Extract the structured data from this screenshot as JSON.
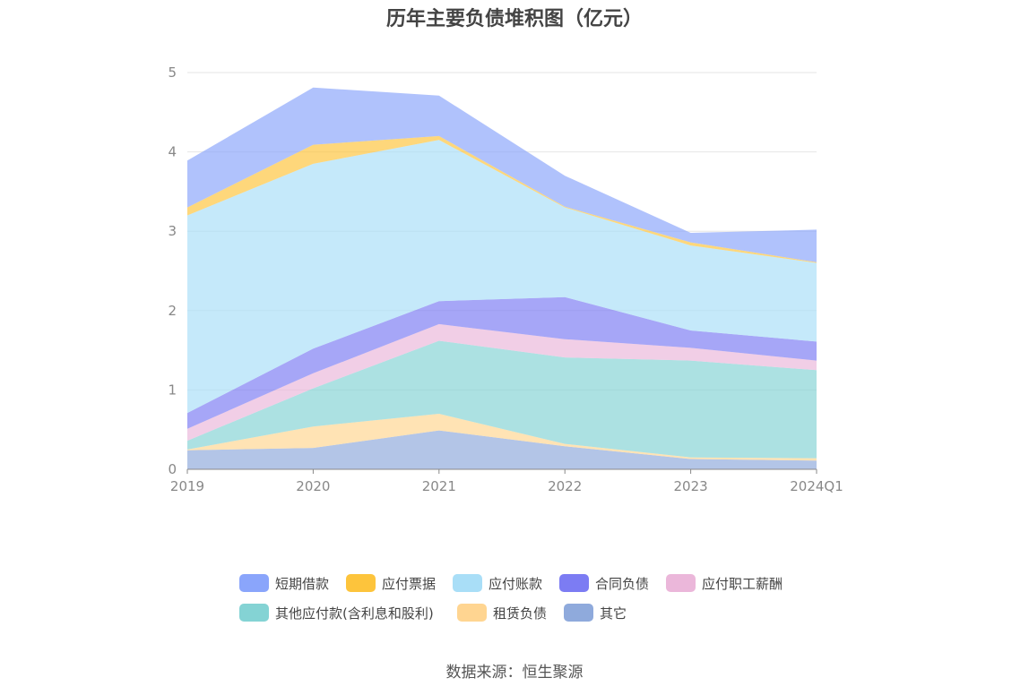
{
  "chart_data": {
    "type": "area",
    "stacked": true,
    "title": "历年主要负债堆积图（亿元）",
    "categories": [
      "2019",
      "2020",
      "2021",
      "2022",
      "2023",
      "2024Q1"
    ],
    "ylim": [
      0,
      5
    ],
    "yticks": [
      "0",
      "1",
      "2",
      "3",
      "4",
      "5"
    ],
    "grid": true,
    "legend_position": "bottom",
    "series": [
      {
        "name": "其它",
        "color": "#8faadc",
        "values": [
          0.24,
          0.27,
          0.49,
          0.29,
          0.13,
          0.11
        ]
      },
      {
        "name": "租赁负债",
        "color": "#ffd591",
        "values": [
          0.01,
          0.27,
          0.21,
          0.03,
          0.02,
          0.03
        ]
      },
      {
        "name": "其他应付款(含利息和股利)",
        "color": "#84d3d4",
        "values": [
          0.11,
          0.48,
          0.92,
          1.09,
          1.22,
          1.11
        ]
      },
      {
        "name": "应付职工薪酬",
        "color": "#ebb7da",
        "values": [
          0.15,
          0.19,
          0.21,
          0.23,
          0.16,
          0.12
        ]
      },
      {
        "name": "合同负债",
        "color": "#7c7cf3",
        "values": [
          0.2,
          0.31,
          0.29,
          0.53,
          0.22,
          0.24
        ]
      },
      {
        "name": "应付账款",
        "color": "#a9def7",
        "values": [
          2.49,
          2.33,
          2.03,
          1.13,
          1.07,
          0.99
        ]
      },
      {
        "name": "应付票据",
        "color": "#fdc43c",
        "values": [
          0.1,
          0.24,
          0.05,
          0.01,
          0.04,
          0.01
        ]
      },
      {
        "name": "短期借款",
        "color": "#8aa5fb",
        "values": [
          0.59,
          0.72,
          0.51,
          0.39,
          0.12,
          0.41
        ]
      }
    ],
    "legend_order": [
      "短期借款",
      "应付票据",
      "应付账款",
      "合同负债",
      "应付职工薪酬",
      "其他应付款(含利息和股利)",
      "租赁负债",
      "其它"
    ]
  },
  "source_text": "数据来源：恒生聚源"
}
